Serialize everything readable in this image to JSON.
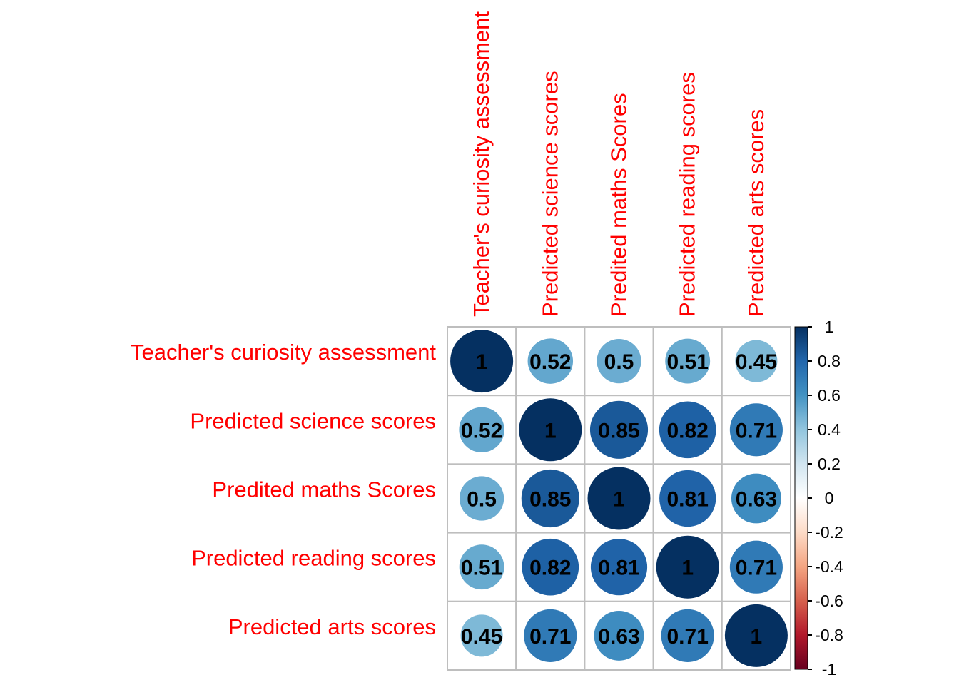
{
  "chart_data": {
    "type": "heatmap",
    "variables": [
      "Teacher's curiosity assessment",
      "Predicted science scores",
      "Predited maths Scores",
      "Predicted reading scores",
      "Predicted arts scores"
    ],
    "matrix": [
      [
        1,
        0.52,
        0.5,
        0.51,
        0.45
      ],
      [
        0.52,
        1,
        0.85,
        0.82,
        0.71
      ],
      [
        0.5,
        0.85,
        1,
        0.81,
        0.63
      ],
      [
        0.51,
        0.82,
        0.81,
        1,
        0.71
      ],
      [
        0.45,
        0.71,
        0.63,
        0.71,
        1
      ]
    ],
    "value_labels": [
      [
        "1",
        "0.52",
        "0.5",
        "0.51",
        "0.45"
      ],
      [
        "0.52",
        "1",
        "0.85",
        "0.82",
        "0.71"
      ],
      [
        "0.5",
        "0.85",
        "1",
        "0.81",
        "0.63"
      ],
      [
        "0.51",
        "0.82",
        "0.81",
        "1",
        "0.71"
      ],
      [
        "0.45",
        "0.71",
        "0.63",
        "0.71",
        "1"
      ]
    ],
    "marker": "circle",
    "range": [
      -1,
      1
    ],
    "colorbar": {
      "ticks": [
        "1",
        "0.8",
        "0.6",
        "0.4",
        "0.2",
        "0",
        "-0.2",
        "-0.4",
        "-0.6",
        "-0.8",
        "-1"
      ],
      "tick_values": [
        1,
        0.8,
        0.6,
        0.4,
        0.2,
        0,
        -0.2,
        -0.4,
        -0.6,
        -0.8,
        -1
      ],
      "colors": [
        "#67001F",
        "#B2182B",
        "#D6604D",
        "#F4A582",
        "#FDDBC7",
        "#FFFFFF",
        "#D1E5F0",
        "#92C5DE",
        "#4393C3",
        "#2166AC",
        "#053061"
      ]
    },
    "label_color": "#FF0000",
    "grid_color": "#BEBEBE"
  }
}
